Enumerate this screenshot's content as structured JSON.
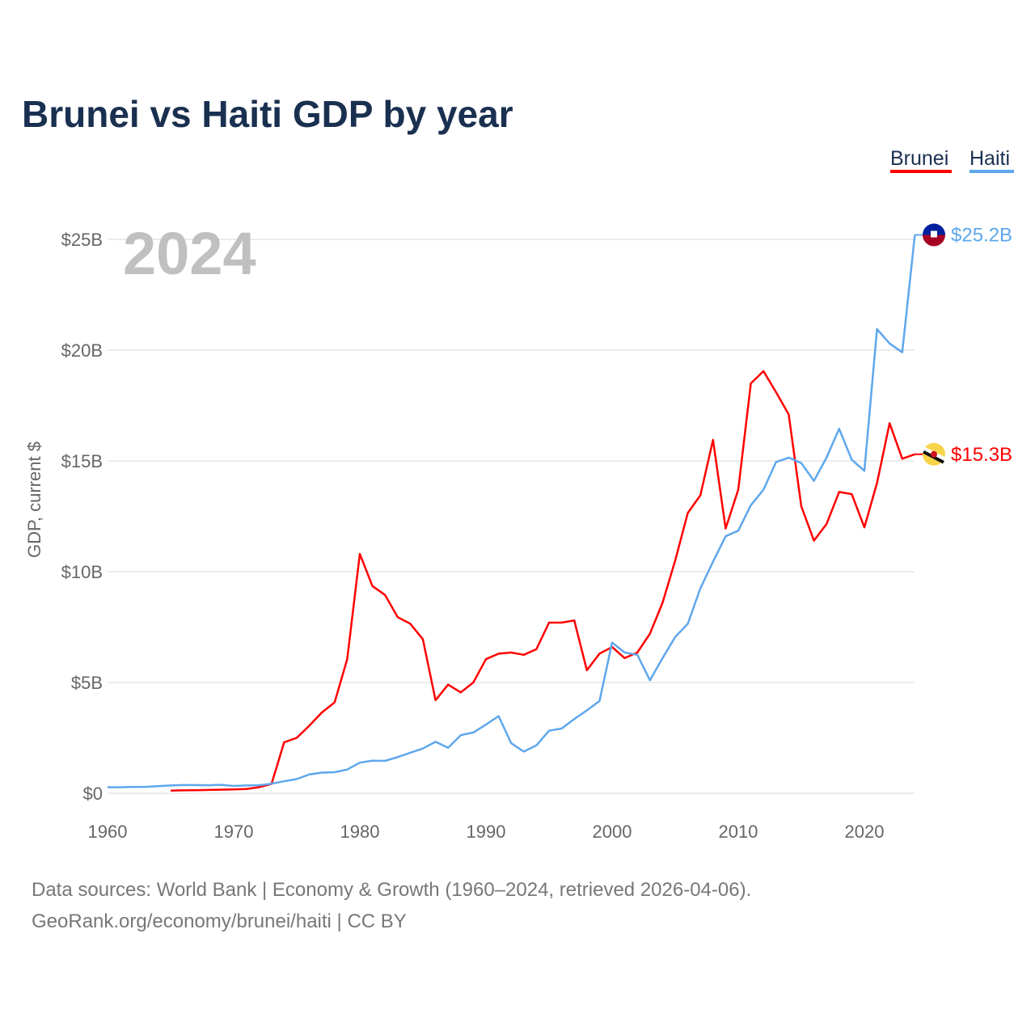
{
  "chart_data": {
    "type": "line",
    "title": "Brunei vs Haiti GDP by year",
    "ylabel": "GDP, current $",
    "xlabel": "",
    "current_year_label": "2024",
    "xlim": [
      1960,
      2024
    ],
    "ylim": [
      0,
      25
    ],
    "x_ticks": [
      1960,
      1970,
      1980,
      1990,
      2000,
      2010,
      2020
    ],
    "x_tick_labels": [
      "1960",
      "1970",
      "1980",
      "1990",
      "2000",
      "2010",
      "2020"
    ],
    "y_ticks": [
      0,
      5,
      10,
      15,
      20,
      25
    ],
    "y_tick_labels": [
      "$0",
      "$5B",
      "$10B",
      "$15B",
      "$20B",
      "$25B"
    ],
    "grid": true,
    "legend_position": "top-right",
    "series": [
      {
        "name": "Brunei",
        "color": "#ff0000",
        "end_label": "$15.3B",
        "flag_icon": "brunei-flag-icon",
        "start_year": 1965,
        "values": [
          0.12,
          0.13,
          0.14,
          0.15,
          0.16,
          0.17,
          0.19,
          0.27,
          0.42,
          2.3,
          2.5,
          3.05,
          3.65,
          4.1,
          6.05,
          10.8,
          9.35,
          8.95,
          7.95,
          7.65,
          6.95,
          4.2,
          4.9,
          4.55,
          5.0,
          6.05,
          6.3,
          6.35,
          6.25,
          6.5,
          7.7,
          7.7,
          7.8,
          5.55,
          6.3,
          6.6,
          6.1,
          6.35,
          7.2,
          8.6,
          10.5,
          12.65,
          13.45,
          15.95,
          11.95,
          13.7,
          18.5,
          19.05,
          18.1,
          17.1,
          12.95,
          11.4,
          12.15,
          13.6,
          13.5,
          12.0,
          14.0,
          16.7,
          15.1,
          15.3
        ]
      },
      {
        "name": "Haiti",
        "color": "#5ea7ec",
        "end_label": "$25.2B",
        "flag_icon": "haiti-flag-icon",
        "start_year": 1960,
        "values": [
          0.27,
          0.27,
          0.28,
          0.29,
          0.32,
          0.35,
          0.37,
          0.37,
          0.36,
          0.38,
          0.33,
          0.35,
          0.36,
          0.43,
          0.54,
          0.64,
          0.85,
          0.93,
          0.95,
          1.07,
          1.38,
          1.47,
          1.46,
          1.63,
          1.83,
          2.02,
          2.32,
          2.05,
          2.62,
          2.74,
          3.1,
          3.48,
          2.26,
          1.88,
          2.16,
          2.82,
          2.92,
          3.35,
          3.74,
          4.16,
          6.8,
          6.35,
          6.25,
          5.1,
          6.1,
          7.05,
          7.65,
          9.25,
          10.45,
          11.6,
          11.85,
          13.0,
          13.7,
          14.95,
          15.15,
          14.9,
          14.1,
          15.15,
          16.45,
          15.05,
          14.55,
          20.95,
          20.3,
          19.9,
          25.2
        ]
      }
    ]
  },
  "footer": {
    "line1": "Data sources: World Bank | Economy & Growth (1960–2024, retrieved 2026-04-06).",
    "line2": "GeoRank.org/economy/brunei/haiti | CC BY"
  }
}
